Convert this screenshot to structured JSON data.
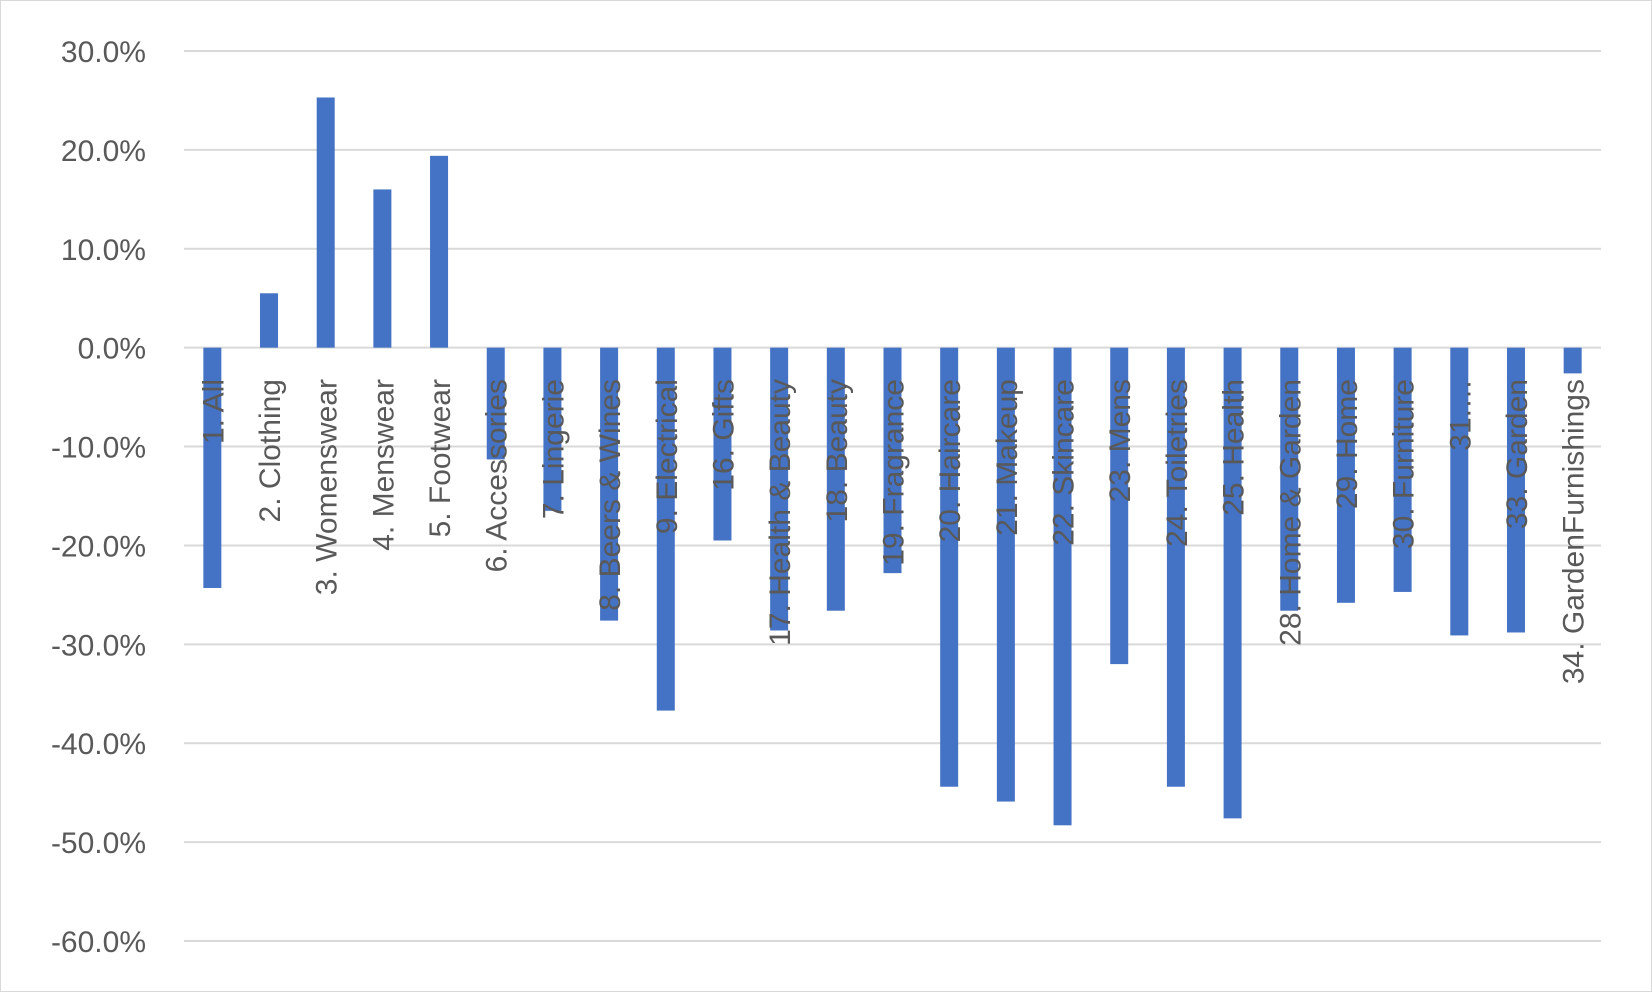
{
  "chart_data": {
    "type": "bar",
    "title": "",
    "xlabel": "",
    "ylabel": "",
    "ylim": [
      -60,
      30
    ],
    "ytick_step": 10,
    "ytick_labels": [
      "30.0%",
      "20.0%",
      "10.0%",
      "0.0%",
      "-10.0%",
      "-20.0%",
      "-30.0%",
      "-40.0%",
      "-50.0%",
      "-60.0%"
    ],
    "grid": true,
    "legend": "none",
    "bar_color": "#4472C4",
    "categories": [
      "1. All",
      "2. Clothing",
      "3. Womenswear",
      "4. Menswear",
      "5. Footwear",
      "6. Accessories",
      "7. Lingerie",
      "8. Beers & Wines",
      "9. Electrical",
      "16. Gifts",
      "17. Health & Beauty",
      "18. Beauty",
      "19. Fragrance",
      "20. Haircare",
      "21. Makeup",
      "22. Skincare",
      "23. Mens",
      "24. Toiletries",
      "25. Health",
      "28. Home & Garden",
      "29. Home",
      "30. Furniture",
      "31.…",
      "33. Garden",
      "34. GardenFurnishings"
    ],
    "values": [
      -24.3,
      5.5,
      25.3,
      16.0,
      19.4,
      -11.3,
      -16.5,
      -27.6,
      -36.7,
      -19.5,
      -28.6,
      -26.6,
      -22.8,
      -44.4,
      -45.9,
      -48.3,
      -32.0,
      -44.4,
      -47.6,
      -26.6,
      -25.8,
      -24.7,
      -29.1,
      -28.8,
      -2.6
    ]
  }
}
